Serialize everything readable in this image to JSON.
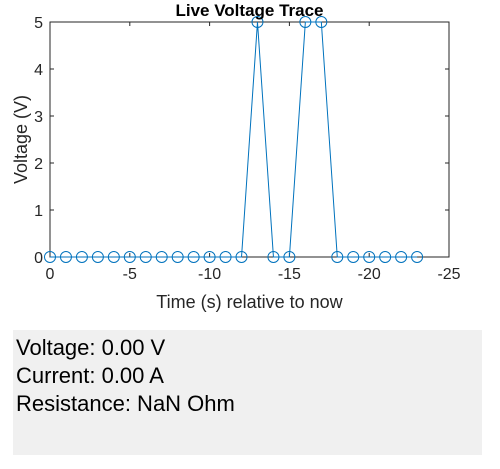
{
  "chart_data": {
    "type": "line",
    "title": "Live Voltage Trace",
    "xlabel": "Time (s) relative to now",
    "ylabel": "Voltage (V)",
    "xlim": [
      0,
      -25
    ],
    "ylim": [
      0,
      5
    ],
    "x_reversed": true,
    "x_ticks": [
      0,
      -5,
      -10,
      -15,
      -20,
      -25
    ],
    "x_tick_labels": [
      "0",
      "-5",
      "-10",
      "-15",
      "-20",
      "-25"
    ],
    "y_ticks": [
      0,
      1,
      2,
      3,
      4,
      5
    ],
    "y_tick_labels": [
      "0",
      "1",
      "2",
      "3",
      "4",
      "5"
    ],
    "grid": false,
    "marker": "circle",
    "series": [
      {
        "x": [
          0,
          -1,
          -2,
          -3,
          -4,
          -5,
          -6,
          -7,
          -8,
          -9,
          -10,
          -11,
          -12,
          -13,
          -14,
          -15,
          -16,
          -17,
          -18,
          -19,
          -20,
          -21,
          -22,
          -23
        ],
        "y": [
          0,
          0,
          0,
          0,
          0,
          0,
          0,
          0,
          0,
          0,
          0,
          0,
          0,
          5,
          0,
          0,
          5,
          5,
          0,
          0,
          0,
          0,
          0,
          0
        ],
        "color": "#0072bd"
      }
    ]
  },
  "readout": {
    "voltage": "Voltage: 0.00 V",
    "current": "Current: 0.00 A",
    "resistance": "Resistance: NaN Ohm"
  }
}
